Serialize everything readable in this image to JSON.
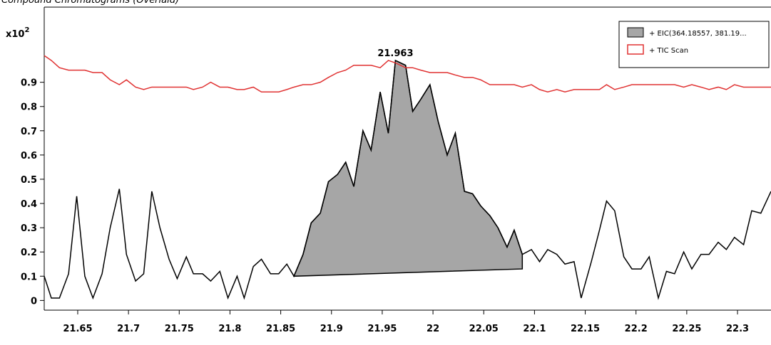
{
  "chart_data": {
    "type": "line",
    "title": "Compound Chromatograms (Overlaid)",
    "y_axis_label": "x10",
    "y_axis_exponent": "2",
    "x": [
      21.617,
      21.624,
      21.632,
      21.641,
      21.649,
      21.657,
      21.665,
      21.674,
      21.682,
      21.691,
      21.698,
      21.707,
      21.715,
      21.723,
      21.731,
      21.74,
      21.748,
      21.757,
      21.764,
      21.773,
      21.781,
      21.79,
      21.798,
      21.807,
      21.814,
      21.823,
      21.831,
      21.84,
      21.848,
      21.856,
      21.863,
      21.872,
      21.88,
      21.889,
      21.897,
      21.906,
      21.914,
      21.922,
      21.931,
      21.939,
      21.948,
      21.956,
      21.963,
      21.973,
      21.98,
      21.988,
      21.997,
      22.005,
      22.014,
      22.022,
      22.031,
      22.039,
      22.047,
      22.056,
      22.064,
      22.073,
      22.08,
      22.088,
      22.097,
      22.105,
      22.113,
      22.122,
      22.13,
      22.139,
      22.146,
      22.156,
      22.164,
      22.171,
      22.179,
      22.188,
      22.196,
      22.205,
      22.213,
      22.222,
      22.23,
      22.238,
      22.247,
      22.255,
      22.264,
      22.272,
      22.281,
      22.289,
      22.297,
      22.306,
      22.314,
      22.323,
      22.333
    ],
    "series": [
      {
        "name": "+ EIC(364.18557, 381.19...",
        "color": "#000000",
        "fill": "#a6a6a6",
        "values": [
          0.1,
          0.01,
          0.01,
          0.11,
          0.43,
          0.1,
          0.01,
          0.11,
          0.3,
          0.46,
          0.19,
          0.08,
          0.11,
          0.45,
          0.3,
          0.17,
          0.09,
          0.18,
          0.11,
          0.11,
          0.08,
          0.12,
          0.01,
          0.1,
          0.01,
          0.14,
          0.17,
          0.11,
          0.11,
          0.15,
          0.1,
          0.19,
          0.32,
          0.36,
          0.49,
          0.52,
          0.57,
          0.47,
          0.7,
          0.62,
          0.86,
          0.69,
          0.99,
          0.97,
          0.78,
          0.83,
          0.89,
          0.74,
          0.6,
          0.69,
          0.45,
          0.44,
          0.39,
          0.35,
          0.3,
          0.22,
          0.29,
          0.19,
          0.21,
          0.16,
          0.21,
          0.19,
          0.15,
          0.16,
          0.01,
          0.16,
          0.29,
          0.41,
          0.37,
          0.18,
          0.13,
          0.13,
          0.18,
          0.01,
          0.12,
          0.11,
          0.2,
          0.13,
          0.19,
          0.19,
          0.24,
          0.21,
          0.26,
          0.23,
          0.37,
          0.36,
          0.45
        ]
      },
      {
        "name": "+ TIC Scan",
        "color": "#e03232",
        "values": [
          1.01,
          0.99,
          0.96,
          0.95,
          0.95,
          0.95,
          0.94,
          0.94,
          0.91,
          0.89,
          0.91,
          0.88,
          0.87,
          0.88,
          0.88,
          0.88,
          0.88,
          0.88,
          0.87,
          0.88,
          0.9,
          0.88,
          0.88,
          0.87,
          0.87,
          0.88,
          0.86,
          0.86,
          0.86,
          0.87,
          0.88,
          0.89,
          0.89,
          0.9,
          0.92,
          0.94,
          0.95,
          0.97,
          0.97,
          0.97,
          0.96,
          0.99,
          0.98,
          0.96,
          0.96,
          0.95,
          0.94,
          0.94,
          0.94,
          0.93,
          0.92,
          0.92,
          0.91,
          0.89,
          0.89,
          0.89,
          0.89,
          0.88,
          0.89,
          0.87,
          0.86,
          0.87,
          0.86,
          0.87,
          0.87,
          0.87,
          0.87,
          0.89,
          0.87,
          0.88,
          0.89,
          0.89,
          0.89,
          0.89,
          0.89,
          0.89,
          0.88,
          0.89,
          0.88,
          0.87,
          0.88,
          0.87,
          0.89,
          0.88,
          0.88,
          0.88,
          0.88
        ]
      }
    ],
    "peak": {
      "label": 21.963,
      "start": 21.863,
      "end": 22.088,
      "baseline_start": 0.1,
      "baseline_end": 0.13
    },
    "xlim": [
      21.617,
      22.333
    ],
    "ylim": [
      -0.04,
      1.21
    ],
    "xticks": [
      21.65,
      21.7,
      21.75,
      21.8,
      21.85,
      21.9,
      21.95,
      22,
      22.05,
      22.1,
      22.15,
      22.2,
      22.25,
      22.3
    ],
    "yticks": [
      0,
      0.1,
      0.2,
      0.3,
      0.4,
      0.5,
      0.6,
      0.7,
      0.8,
      0.9
    ],
    "legend": "upper right"
  }
}
